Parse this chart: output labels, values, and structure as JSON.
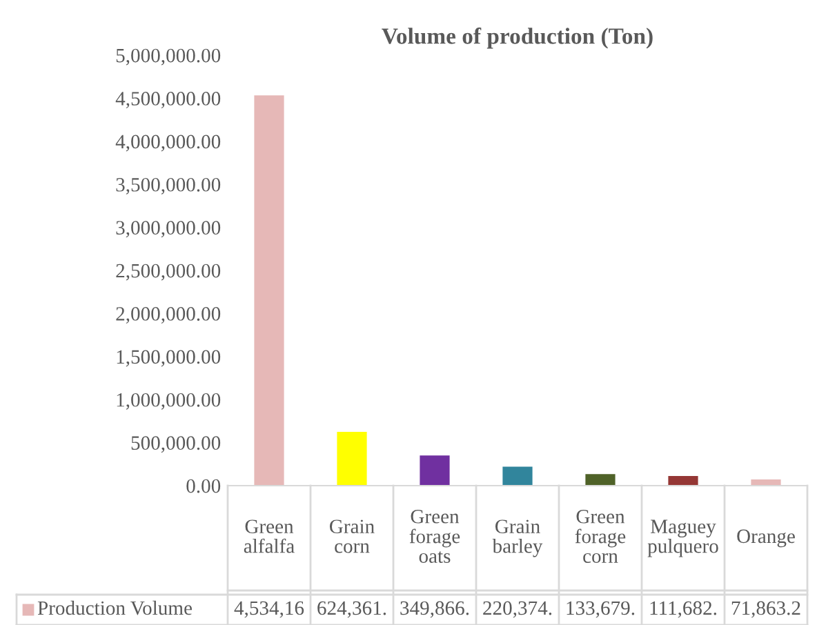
{
  "chart_data": {
    "type": "bar",
    "title": "Volume of production (Ton)",
    "categories": [
      "Green alfalfa",
      "Grain corn",
      "Green forage oats",
      "Grain barley",
      "Green forage corn",
      "Maguey pulquero",
      "Orange"
    ],
    "series": [
      {
        "name": "Production Volume",
        "color": "#e6b8b7",
        "colors": [
          "#e6b8b7",
          "#ffff00",
          "#7030a0",
          "#31859c",
          "#4f6228",
          "#953735",
          "#e6b8b7"
        ],
        "values": [
          4534160,
          624361,
          349866,
          220374,
          133679,
          111682,
          71863.2
        ],
        "value_labels": [
          "4,534,16",
          "624,361.",
          "349,866.",
          "220,374.",
          "133,679.",
          "111,682.",
          "71,863.2"
        ]
      }
    ],
    "ylim": [
      0,
      5000000
    ],
    "yticks": [
      {
        "value": 0,
        "label": "0.00"
      },
      {
        "value": 500000,
        "label": "500,000.00"
      },
      {
        "value": 1000000,
        "label": "1,000,000.00"
      },
      {
        "value": 1500000,
        "label": "1,500,000.00"
      },
      {
        "value": 2000000,
        "label": "2,000,000.00"
      },
      {
        "value": 2500000,
        "label": "2,500,000.00"
      },
      {
        "value": 3000000,
        "label": "3,000,000.00"
      },
      {
        "value": 3500000,
        "label": "3,500,000.00"
      },
      {
        "value": 4000000,
        "label": "4,000,000.00"
      },
      {
        "value": 4500000,
        "label": "4,500,000.00"
      },
      {
        "value": 5000000,
        "label": "5,000,000.00"
      }
    ],
    "grid": false,
    "legend": "bottom"
  }
}
